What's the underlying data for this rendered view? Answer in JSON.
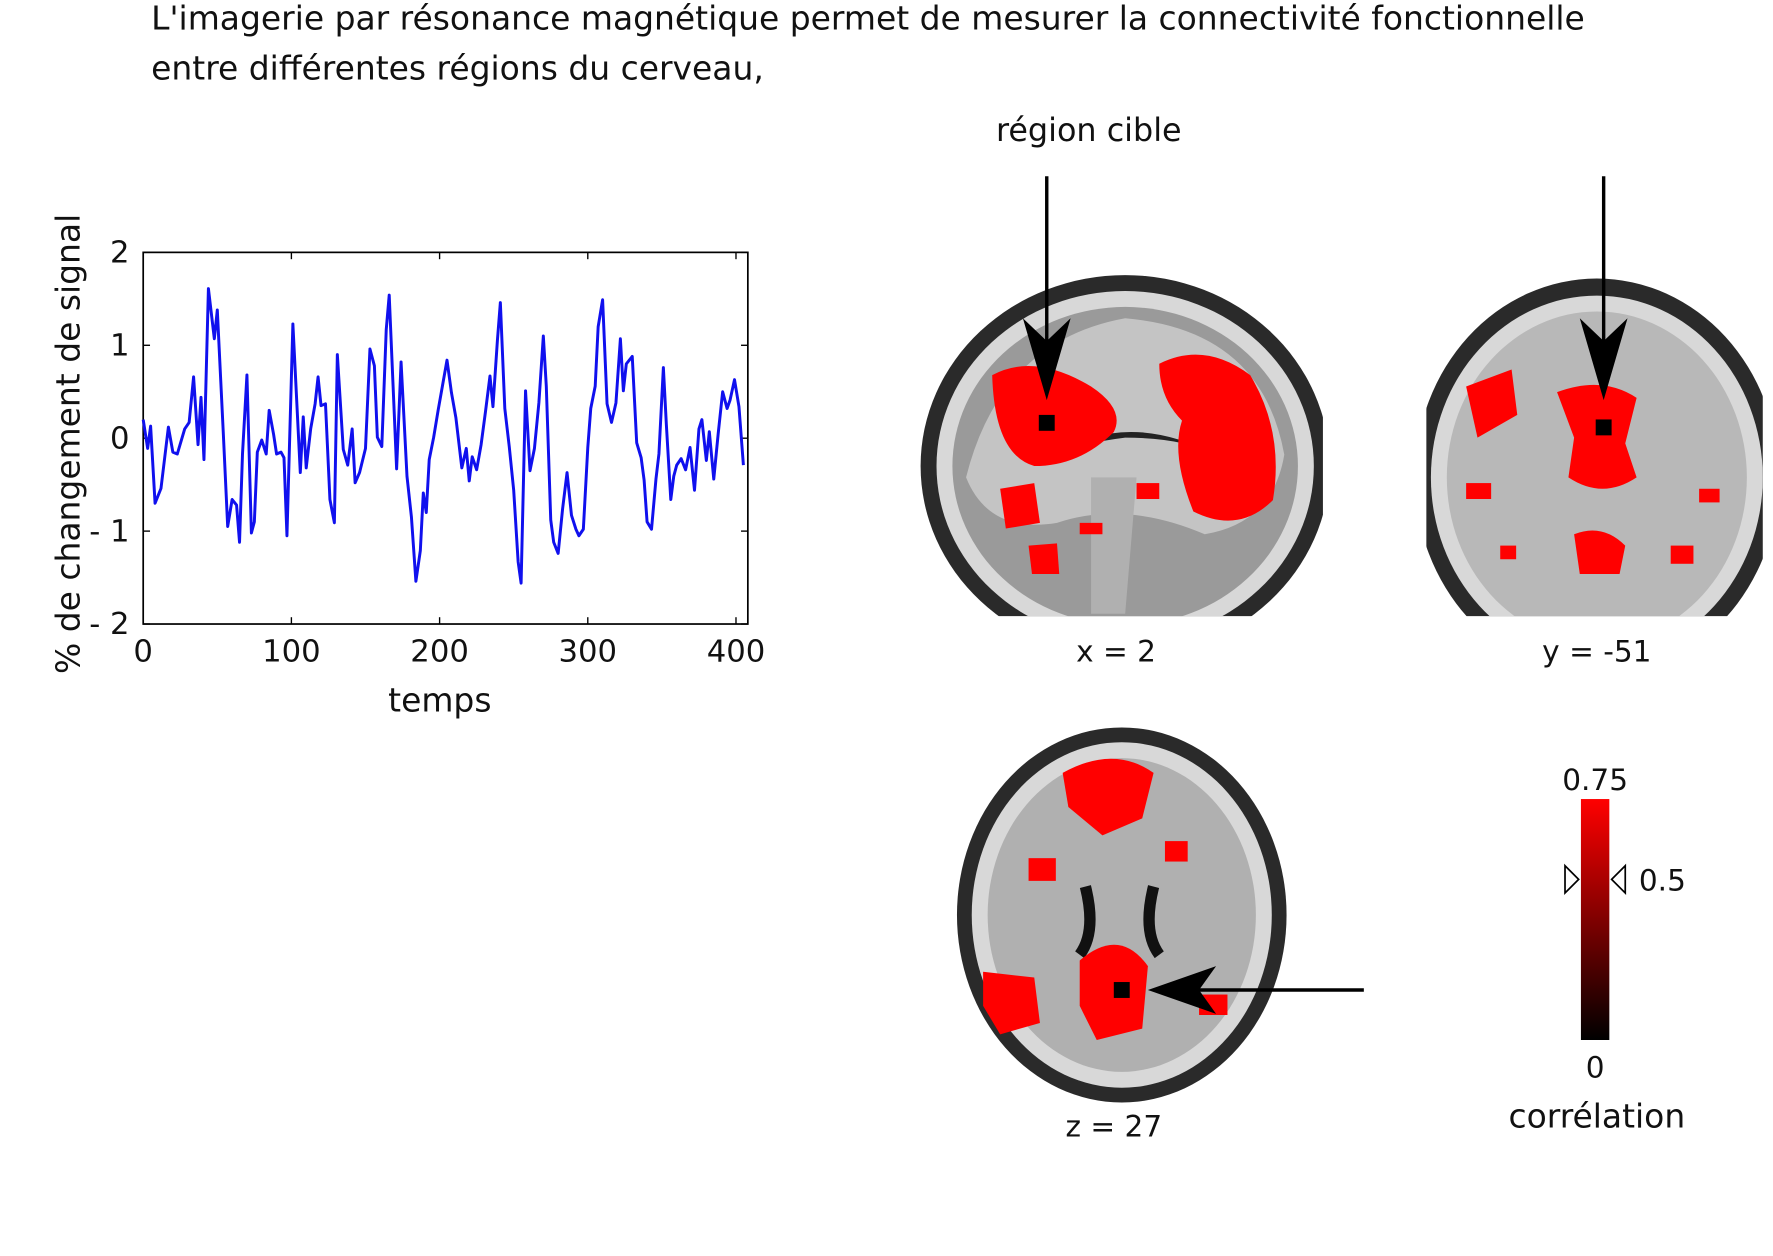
{
  "header": {
    "lines": [
      "L'imagerie par résonance magnétique permet de mesurer la connectivité fonctionnelle",
      "entre différentes régions du cerveau,"
    ]
  },
  "chart_data": {
    "type": "line",
    "xlabel": "temps",
    "ylabel": "% de changement de signal",
    "x": [
      0,
      3,
      5,
      8,
      12,
      17,
      20,
      23,
      28,
      31,
      34,
      37,
      39,
      41,
      44,
      48,
      50,
      54,
      57,
      60,
      63,
      65,
      67,
      70,
      73,
      75,
      77,
      80,
      83,
      85,
      88,
      90,
      93,
      95,
      97,
      101,
      106,
      108,
      110,
      113,
      116,
      118,
      120,
      123,
      126,
      129,
      131,
      135,
      138,
      141,
      143,
      146,
      150,
      153,
      156,
      158,
      161,
      164,
      166,
      171,
      174,
      178,
      181,
      184,
      187,
      189,
      191,
      193,
      196,
      199,
      202,
      205,
      208,
      211,
      215,
      218,
      220,
      222,
      225,
      228,
      231,
      234,
      236,
      239,
      241,
      244,
      247,
      250,
      253,
      255,
      258,
      261,
      264,
      267,
      270,
      272,
      275,
      277,
      280,
      283,
      286,
      289,
      292,
      294,
      297,
      300,
      302,
      305,
      307,
      310,
      313,
      316,
      319,
      322,
      324,
      326,
      330,
      333,
      336,
      338,
      340,
      343,
      346,
      348,
      351,
      353,
      356,
      358,
      360,
      363,
      366,
      369,
      372,
      375,
      377,
      380,
      382,
      385,
      388,
      391,
      394,
      396,
      399,
      402,
      405
    ],
    "series": [
      {
        "name": "signal",
        "color": "#1010ee",
        "values": [
          0.2,
          -0.11,
          0.13,
          -0.7,
          -0.54,
          0.12,
          -0.15,
          -0.17,
          0.1,
          0.17,
          0.66,
          -0.07,
          0.44,
          -0.23,
          1.61,
          1.07,
          1.38,
          0.07,
          -0.95,
          -0.66,
          -0.72,
          -1.12,
          -0.17,
          0.68,
          -1.02,
          -0.9,
          -0.15,
          -0.02,
          -0.17,
          0.3,
          0.04,
          -0.17,
          -0.15,
          -0.21,
          -1.05,
          1.23,
          -0.37,
          0.23,
          -0.32,
          0.1,
          0.37,
          0.66,
          0.35,
          0.37,
          -0.66,
          -0.91,
          0.9,
          -0.12,
          -0.29,
          0.1,
          -0.48,
          -0.37,
          -0.11,
          0.96,
          0.78,
          0.01,
          -0.09,
          1.17,
          1.54,
          -0.33,
          0.82,
          -0.41,
          -0.85,
          -1.54,
          -1.21,
          -0.59,
          -0.8,
          -0.23,
          0.01,
          0.3,
          0.57,
          0.84,
          0.49,
          0.22,
          -0.32,
          -0.11,
          -0.46,
          -0.2,
          -0.34,
          -0.07,
          0.29,
          0.67,
          0.34,
          1.05,
          1.46,
          0.32,
          -0.09,
          -0.56,
          -1.33,
          -1.56,
          0.51,
          -0.35,
          -0.11,
          0.38,
          1.1,
          0.56,
          -0.88,
          -1.12,
          -1.24,
          -0.76,
          -0.37,
          -0.83,
          -0.98,
          -1.05,
          -0.98,
          -0.1,
          0.32,
          0.56,
          1.2,
          1.49,
          0.37,
          0.17,
          0.38,
          1.07,
          0.51,
          0.8,
          0.88,
          -0.05,
          -0.21,
          -0.45,
          -0.9,
          -0.98,
          -0.44,
          -0.17,
          0.76,
          0.15,
          -0.66,
          -0.41,
          -0.29,
          -0.22,
          -0.34,
          -0.1,
          -0.56,
          0.1,
          0.2,
          -0.24,
          0.07,
          -0.44,
          0.05,
          0.5,
          0.32,
          0.41,
          0.63,
          0.34,
          -0.29
        ]
      }
    ],
    "xlim": [
      0,
      408
    ],
    "xticks": [
      0,
      100,
      200,
      300,
      400
    ],
    "ylim": [
      -2,
      2
    ],
    "yticks": [
      {
        "value": -2,
        "label": "- 2"
      },
      {
        "value": -1,
        "label": "- 1"
      },
      0,
      1,
      2
    ]
  },
  "brain": {
    "target_label": "région cible",
    "slices": [
      "x = 2",
      "y = -51",
      "z = 27"
    ]
  },
  "colorbar": {
    "lim": [
      0,
      0.75
    ],
    "ticks": [
      0,
      0.5,
      0.75
    ],
    "threshold": 0.5,
    "label": "corrélation"
  }
}
